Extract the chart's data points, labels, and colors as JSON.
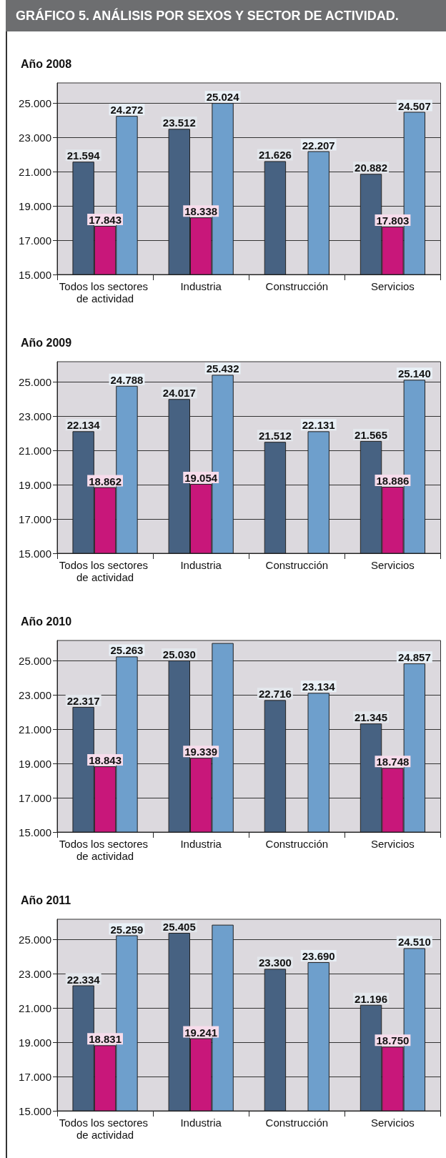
{
  "chart_data": [
    {
      "type": "bar",
      "title": "GRÁFICO 5. ANÁLISIS POR SEXOS Y SECTOR DE ACTIVIDAD.",
      "subtitle": "Año 2008",
      "categories": [
        "Todos los sectores de actividad",
        "Industria",
        "Construcción",
        "Servicios"
      ],
      "series": [
        {
          "color": "#476282",
          "values": [
            21594,
            23512,
            21626,
            20882
          ],
          "value_labels": [
            "21.594",
            "23.512",
            "21.626",
            "20.882"
          ]
        },
        {
          "color": "#c8177a",
          "values": [
            17843,
            18338,
            null,
            17803
          ],
          "value_labels": [
            "17.843",
            "18.338",
            null,
            "17.803"
          ]
        },
        {
          "color": "#6e9fcc",
          "values": [
            24272,
            25024,
            22207,
            24507
          ],
          "value_labels": [
            "24.272",
            "25.024",
            "22.207",
            "24.507"
          ]
        }
      ],
      "ylim": [
        15000,
        26200
      ],
      "yticks": [
        {
          "value": 15000,
          "label": "15.000"
        },
        {
          "value": 17000,
          "label": "17.000"
        },
        {
          "value": 19000,
          "label": "19.000"
        },
        {
          "value": 21000,
          "label": "21.000"
        },
        {
          "value": 23000,
          "label": "23.000"
        },
        {
          "value": 25000,
          "label": "25.000"
        }
      ],
      "grid": "y"
    },
    {
      "type": "bar",
      "subtitle": "Año 2009",
      "categories": [
        "Todos los sectores de actividad",
        "Industria",
        "Construcción",
        "Servicios"
      ],
      "series": [
        {
          "color": "#476282",
          "values": [
            22134,
            24017,
            21512,
            21565
          ],
          "value_labels": [
            "22.134",
            "24.017",
            "21.512",
            "21.565"
          ]
        },
        {
          "color": "#c8177a",
          "values": [
            18862,
            19054,
            null,
            18886
          ],
          "value_labels": [
            "18.862",
            "19.054",
            null,
            "18.886"
          ]
        },
        {
          "color": "#6e9fcc",
          "values": [
            24788,
            25432,
            22131,
            25140
          ],
          "value_labels": [
            "24.788",
            "25.432",
            "22.131",
            "25.140"
          ]
        }
      ],
      "ylim": [
        15000,
        26200
      ],
      "yticks": [
        {
          "value": 15000,
          "label": "15.000"
        },
        {
          "value": 17000,
          "label": "17.000"
        },
        {
          "value": 19000,
          "label": "19.000"
        },
        {
          "value": 21000,
          "label": "21.000"
        },
        {
          "value": 23000,
          "label": "23.000"
        },
        {
          "value": 25000,
          "label": "25.000"
        }
      ],
      "grid": "y"
    },
    {
      "type": "bar",
      "subtitle": "Año 2010",
      "categories": [
        "Todos los sectores de actividad",
        "Industria",
        "Construcción",
        "Servicios"
      ],
      "series": [
        {
          "color": "#476282",
          "values": [
            22317,
            25030,
            22716,
            21345
          ],
          "value_labels": [
            "22.317",
            "25.030",
            "22.716",
            "21.345"
          ]
        },
        {
          "color": "#c8177a",
          "values": [
            18843,
            19339,
            null,
            18748
          ],
          "value_labels": [
            "18.843",
            "19.339",
            null,
            "18.748"
          ]
        },
        {
          "color": "#6e9fcc",
          "values": [
            25263,
            26050,
            23134,
            24857
          ],
          "value_labels": [
            "25.263",
            null,
            "23.134",
            "24.857"
          ]
        }
      ],
      "ylim": [
        15000,
        26200
      ],
      "yticks": [
        {
          "value": 15000,
          "label": "15.000"
        },
        {
          "value": 17000,
          "label": "17.000"
        },
        {
          "value": 19000,
          "label": "19.000"
        },
        {
          "value": 21000,
          "label": "21.000"
        },
        {
          "value": 23000,
          "label": "23.000"
        },
        {
          "value": 25000,
          "label": "25.000"
        }
      ],
      "grid": "y"
    },
    {
      "type": "bar",
      "subtitle": "Año 2011",
      "categories": [
        "Todos los sectores de actividad",
        "Industria",
        "Construcción",
        "Servicios"
      ],
      "series": [
        {
          "color": "#476282",
          "values": [
            22334,
            25405,
            23300,
            21196
          ],
          "value_labels": [
            "22.334",
            "25.405",
            "23.300",
            "21.196"
          ]
        },
        {
          "color": "#c8177a",
          "values": [
            18831,
            19241,
            null,
            18750
          ],
          "value_labels": [
            "18.831",
            "19.241",
            null,
            "18.750"
          ]
        },
        {
          "color": "#6e9fcc",
          "values": [
            25259,
            25880,
            23690,
            24510
          ],
          "value_labels": [
            "25.259",
            null,
            "23.690",
            "24.510"
          ]
        }
      ],
      "ylim": [
        15000,
        26200
      ],
      "yticks": [
        {
          "value": 15000,
          "label": "15.000"
        },
        {
          "value": 17000,
          "label": "17.000"
        },
        {
          "value": 19000,
          "label": "19.000"
        },
        {
          "value": 21000,
          "label": "21.000"
        },
        {
          "value": 23000,
          "label": "23.000"
        },
        {
          "value": 25000,
          "label": "25.000"
        }
      ],
      "grid": "y"
    }
  ]
}
